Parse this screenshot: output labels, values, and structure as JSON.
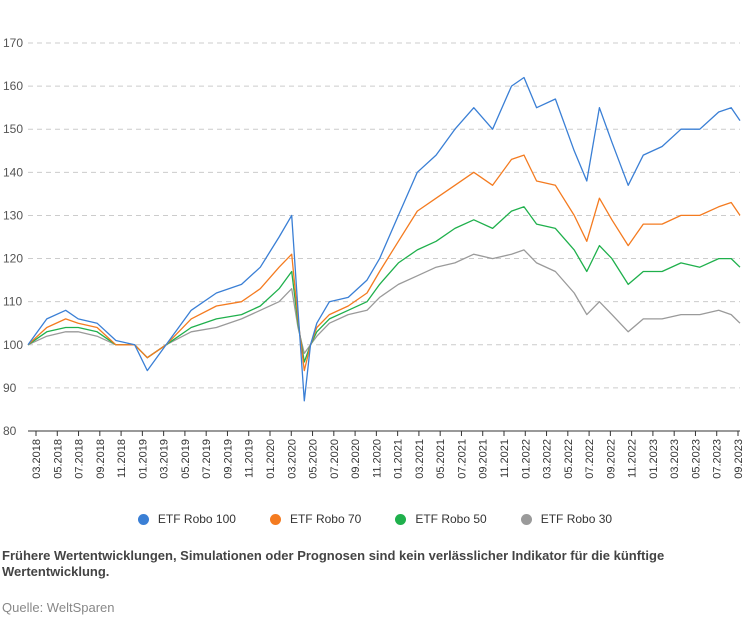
{
  "chart_data": {
    "type": "line",
    "ylim": [
      80,
      170
    ],
    "yticks": [
      80,
      90,
      100,
      110,
      120,
      130,
      140,
      150,
      160,
      170
    ],
    "xlim": [
      2018.0,
      2023.67
    ],
    "xticks": [
      "03.2018",
      "05.2018",
      "07.2018",
      "09.2018",
      "11.2018",
      "01.2019",
      "03.2019",
      "05.2019",
      "07.2019",
      "09.2019",
      "11.2019",
      "01.2020",
      "03.2020",
      "05.2020",
      "07.2020",
      "09.2020",
      "11.2020",
      "01.2021",
      "03.2021",
      "05.2021",
      "07.2021",
      "09.2021",
      "11.2021",
      "01.2022",
      "03.2022",
      "05.2022",
      "07.2022",
      "09.2022",
      "11.2022",
      "01.2023",
      "03.2023",
      "05.2023",
      "07.2023",
      "09.2023"
    ],
    "grid": true,
    "legend_position": "bottom",
    "x": [
      2018.0,
      2018.15,
      2018.3,
      2018.4,
      2018.55,
      2018.7,
      2018.85,
      2018.95,
      2019.1,
      2019.3,
      2019.5,
      2019.7,
      2019.85,
      2020.0,
      2020.1,
      2020.15,
      2020.2,
      2020.25,
      2020.3,
      2020.4,
      2020.55,
      2020.7,
      2020.8,
      2020.95,
      2021.1,
      2021.25,
      2021.4,
      2021.55,
      2021.7,
      2021.85,
      2021.95,
      2022.05,
      2022.2,
      2022.35,
      2022.45,
      2022.55,
      2022.65,
      2022.78,
      2022.9,
      2023.05,
      2023.2,
      2023.35,
      2023.5,
      2023.6,
      2023.67
    ],
    "series": [
      {
        "name": "ETF Robo 100",
        "color": "#3a7fd5",
        "values": [
          100,
          106,
          108,
          106,
          105,
          101,
          100,
          94,
          100,
          108,
          112,
          114,
          118,
          125,
          130,
          108,
          87,
          100,
          105,
          110,
          111,
          115,
          120,
          130,
          140,
          144,
          150,
          155,
          150,
          160,
          162,
          155,
          157,
          145,
          138,
          155,
          147,
          137,
          144,
          146,
          150,
          150,
          154,
          155,
          152
        ]
      },
      {
        "name": "ETF Robo 70",
        "color": "#f47b20",
        "values": [
          100,
          104,
          106,
          105,
          104,
          100,
          100,
          97,
          100,
          106,
          109,
          110,
          113,
          118,
          121,
          106,
          94,
          100,
          104,
          107,
          109,
          112,
          117,
          124,
          131,
          134,
          137,
          140,
          137,
          143,
          144,
          138,
          137,
          130,
          124,
          134,
          129,
          123,
          128,
          128,
          130,
          130,
          132,
          133,
          130
        ]
      },
      {
        "name": "ETF Robo 50",
        "color": "#1fb04c",
        "values": [
          100,
          103,
          104,
          104,
          103,
          100,
          100,
          97,
          100,
          104,
          106,
          107,
          109,
          113,
          117,
          105,
          96,
          100,
          103,
          106,
          108,
          110,
          114,
          119,
          122,
          124,
          127,
          129,
          127,
          131,
          132,
          128,
          127,
          122,
          117,
          123,
          120,
          114,
          117,
          117,
          119,
          118,
          120,
          120,
          118
        ]
      },
      {
        "name": "ETF Robo 30",
        "color": "#9a9a9a",
        "values": [
          100,
          102,
          103,
          103,
          102,
          100,
          100,
          97,
          100,
          103,
          104,
          106,
          108,
          110,
          113,
          104,
          98,
          100,
          102,
          105,
          107,
          108,
          111,
          114,
          116,
          118,
          119,
          121,
          120,
          121,
          122,
          119,
          117,
          112,
          107,
          110,
          107,
          103,
          106,
          106,
          107,
          107,
          108,
          107,
          105
        ]
      }
    ]
  },
  "legend": {
    "items": [
      {
        "label": "ETF Robo 100",
        "color": "#3a7fd5"
      },
      {
        "label": "ETF Robo 70",
        "color": "#f47b20"
      },
      {
        "label": "ETF Robo 50",
        "color": "#1fb04c"
      },
      {
        "label": "ETF Robo 30",
        "color": "#9a9a9a"
      }
    ]
  },
  "footer": {
    "note": "Frühere Wertentwicklungen, Simulationen oder Prognosen sind kein verlässlicher Indikator für die künftige Wertentwicklung.",
    "source": "Quelle: WeltSparen"
  }
}
